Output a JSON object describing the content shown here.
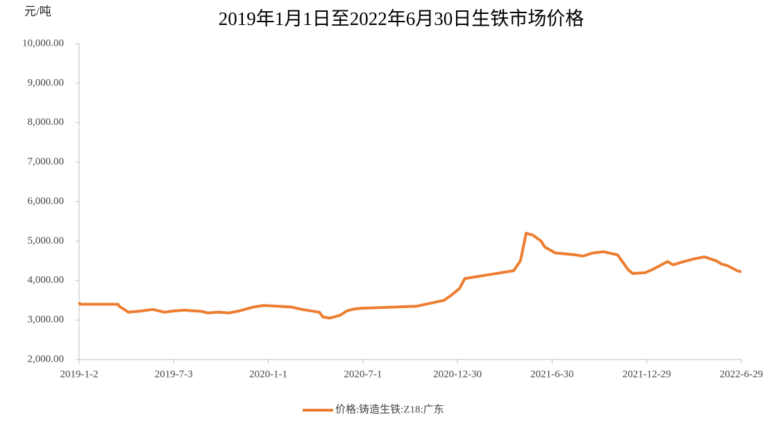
{
  "chart_data": {
    "type": "line",
    "title": "2019年1月1日至2022年6月30日生铁市场价格",
    "y_label": "元/吨",
    "x": [
      "2019-01-02",
      "2019-01-04",
      "2019-03-18",
      "2019-03-20",
      "2019-04-07",
      "2019-05-03",
      "2019-05-24",
      "2019-06-15",
      "2019-07-03",
      "2019-07-23",
      "2019-08-25",
      "2019-09-07",
      "2019-09-27",
      "2019-10-17",
      "2019-11-06",
      "2019-12-03",
      "2019-12-23",
      "2020-02-15",
      "2020-03-06",
      "2020-04-08",
      "2020-04-15",
      "2020-04-28",
      "2020-05-18",
      "2020-05-31",
      "2020-06-14",
      "2020-06-27",
      "2020-10-12",
      "2020-12-04",
      "2020-12-20",
      "2021-01-03",
      "2021-01-13",
      "2021-03-01",
      "2021-04-17",
      "2021-04-30",
      "2021-05-11",
      "2021-05-24",
      "2021-06-09",
      "2021-06-16",
      "2021-07-06",
      "2021-08-15",
      "2021-08-28",
      "2021-09-17",
      "2021-10-07",
      "2021-11-03",
      "2021-11-14",
      "2021-11-23",
      "2021-12-02",
      "2021-12-26",
      "2022-01-09",
      "2022-02-07",
      "2022-02-18",
      "2022-03-10",
      "2022-03-30",
      "2022-04-19",
      "2022-05-12",
      "2022-05-22",
      "2022-06-02",
      "2022-06-21",
      "2022-06-29"
    ],
    "series": [
      {
        "name": "价格:铸造生铁:Z18:广东",
        "color": "#ed7d31",
        "values": [
          3450,
          3400,
          3400,
          3350,
          3200,
          3230,
          3270,
          3200,
          3230,
          3250,
          3220,
          3180,
          3200,
          3180,
          3230,
          3330,
          3370,
          3330,
          3270,
          3200,
          3080,
          3050,
          3120,
          3230,
          3280,
          3300,
          3350,
          3500,
          3650,
          3800,
          4050,
          4150,
          4250,
          4500,
          5200,
          5150,
          5000,
          4850,
          4700,
          4650,
          4620,
          4700,
          4730,
          4650,
          4450,
          4280,
          4180,
          4200,
          4280,
          4480,
          4400,
          4480,
          4550,
          4600,
          4500,
          4420,
          4380,
          4250,
          4220
        ]
      }
    ],
    "xlim": [
      "2019-01-02",
      "2022-06-29"
    ],
    "xticks": [
      {
        "value": "2019-01-02",
        "label": "2019-1-2"
      },
      {
        "value": "2019-07-03",
        "label": "2019-7-3"
      },
      {
        "value": "2020-01-01",
        "label": "2020-1-1"
      },
      {
        "value": "2020-07-01",
        "label": "2020-7-1"
      },
      {
        "value": "2020-12-30",
        "label": "2020-12-30"
      },
      {
        "value": "2021-06-30",
        "label": "2021-6-30"
      },
      {
        "value": "2021-12-29",
        "label": "2021-12-29"
      },
      {
        "value": "2022-06-29",
        "label": "2022-6-29"
      }
    ],
    "ylim": [
      2000,
      10000
    ],
    "yticks": [
      {
        "value": 2000,
        "label": "2,000.00"
      },
      {
        "value": 3000,
        "label": "3,000.00"
      },
      {
        "value": 4000,
        "label": "4,000.00"
      },
      {
        "value": 5000,
        "label": "5,000.00"
      },
      {
        "value": 6000,
        "label": "6,000.00"
      },
      {
        "value": 7000,
        "label": "7,000.00"
      },
      {
        "value": 8000,
        "label": "8,000.00"
      },
      {
        "value": 9000,
        "label": "9,000.00"
      },
      {
        "value": 10000,
        "label": "10,000.00"
      }
    ],
    "legend": "bottom"
  }
}
